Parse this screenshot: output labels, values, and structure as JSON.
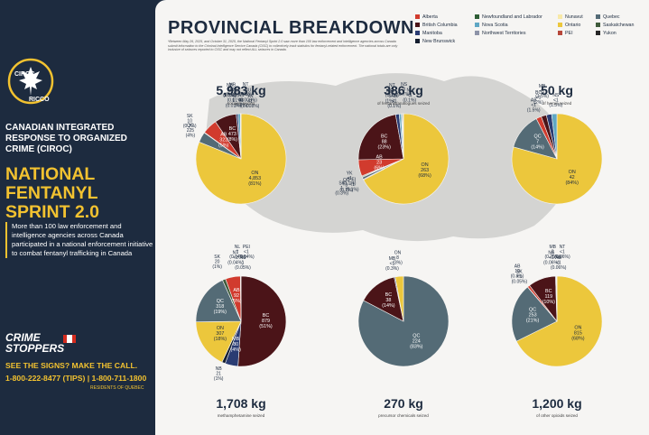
{
  "left": {
    "logo_top": "CIROC",
    "logo_bottom": "RICCO",
    "org": "CANADIAN INTEGRATED RESPONSE TO ORGANIZED CRIME (CIROC)",
    "headline": "NATIONAL FENTANYL SPRINT 2.0",
    "intro": "More than 100 law enforcement and intelligence agencies across Canada participated in a national enforcement initiative to combat fentanyl trafficking in Canada",
    "cs_line1": "CRIME",
    "cs_line2": "STOPPERS",
    "tagline": "SEE THE SIGNS? MAKE THE CALL.",
    "phones": "1-800-222-8477 (TIPS) | 1-800-711-1800",
    "quebec": "RESIDENTS OF QUEBEC"
  },
  "main": {
    "title": "PROVINCIAL BREAKDOWN",
    "footnote": "*Between May 26, 2025, and October 31, 2025, the National Fentanyl Sprint 2.0 saw more than 100 law enforcement and intelligence agencies across Canada submit information to the Criminal Intelligence Service Canada (CISC) to collectively track statistics for fentanyl-related enforcement. The national totals are only inclusive of seizures reported to CISC and may not reflect ALL seizures in Canada."
  },
  "colors": {
    "Alberta": "#d13b2e",
    "British Columbia": "#4b1418",
    "Manitoba": "#2a3c73",
    "New Brunswick": "#141e2f",
    "Newfoundland and Labrador": "#2e5d35",
    "Nova Scotia": "#5fa7c4",
    "Northwest Territories": "#8d93a8",
    "Nunavut": "#f8e9a7",
    "Ontario": "#ecc73c",
    "PEI": "#b7473a",
    "Quebec": "#546b76",
    "Saskatchewan": "#3f5b3b",
    "Yukon": "#262626",
    "page_bg": "#f6f5f3",
    "panel_bg": "#1d2b3f",
    "accent": "#f2c230"
  },
  "legend": [
    {
      "label": "Alberta",
      "color_key": "Alberta"
    },
    {
      "label": "British Columbia",
      "color_key": "British Columbia"
    },
    {
      "label": "Manitoba",
      "color_key": "Manitoba"
    },
    {
      "label": "New Brunswick",
      "color_key": "New Brunswick"
    },
    {
      "label": "Newfoundland and Labrador",
      "color_key": "Newfoundland and Labrador"
    },
    {
      "label": "Nova Scotia",
      "color_key": "Nova Scotia"
    },
    {
      "label": "Northwest Territories",
      "color_key": "Northwest Territories"
    },
    {
      "label": "Nunavut",
      "color_key": "Nunavut"
    },
    {
      "label": "Ontario",
      "color_key": "Ontario"
    },
    {
      "label": "PEI",
      "color_key": "PEI"
    },
    {
      "label": "Quebec",
      "color_key": "Quebec"
    },
    {
      "label": "Saskatchewan",
      "color_key": "Saskatchewan"
    },
    {
      "label": "Yukon",
      "color_key": "Yukon"
    }
  ],
  "chart_data": [
    {
      "type": "pie",
      "title": "5,983 kg",
      "subtitle": "cocaine seized",
      "slices": [
        {
          "code": "ON",
          "value": 4853,
          "pct": "81%",
          "color_key": "Ontario",
          "label": "ON\n4,853\n(81%)",
          "inside": true
        },
        {
          "code": "QC",
          "value": 225,
          "pct": "4%",
          "color_key": "Quebec",
          "label": "QC\n225\n(4%)"
        },
        {
          "code": "SK",
          "value": 10,
          "pct": "0.2%",
          "color_key": "Saskatchewan",
          "label": "SK\n10\n(0.2%)"
        },
        {
          "code": "AB",
          "value": 322,
          "pct": "5%",
          "color_key": "Alberta",
          "label": "AB\n322\n(5%)",
          "inside": true
        },
        {
          "code": "BC",
          "value": 473,
          "pct": "8%",
          "color_key": "British Columbia",
          "label": "BC\n473\n(8%)",
          "inside": true
        },
        {
          "code": "MB",
          "value": 40,
          "pct": "0.6%",
          "color_key": "Manitoba",
          "label": "MB\n40\n(0.6%)"
        },
        {
          "code": "NS",
          "value": 48,
          "pct": "0.8%",
          "color_key": "Nova Scotia",
          "label": "NS\n48\n(0.8%)"
        },
        {
          "code": "PEI",
          "value": 1,
          "pct": "0.01%",
          "color_key": "PEI",
          "label": "PEI\n1\n(0.01%)"
        },
        {
          "code": "NT",
          "value": 2,
          "pct": "0.03%",
          "color_key": "Northwest Territories",
          "label": "NT\n2\n(0.03%)"
        },
        {
          "code": "NL",
          "value": 1,
          "pct": "0.01%",
          "color_key": "Newfoundland and Labrador",
          "label": "NL\n1\n(0.01%)"
        },
        {
          "code": "NU",
          "value": 1,
          "pct": "0.008%",
          "color_key": "Nunavut",
          "label": "NU\n<1\n(0.008%)"
        },
        {
          "code": "NB",
          "value": 8,
          "pct": "0.1%",
          "color_key": "New Brunswick",
          "label": "NB\n8\n(0.1%)"
        },
        {
          "code": "YK",
          "value": 1,
          "pct": "0.008%",
          "color_key": "Yukon",
          "label": "YK\n<1\n(0.008%)"
        }
      ]
    },
    {
      "type": "pie",
      "title": "386 kg",
      "subtitle": "of fentanyl/analogues seized",
      "slices": [
        {
          "code": "ON",
          "value": 263,
          "pct": "68%",
          "color_key": "Ontario",
          "label": "ON\n263\n(68%)",
          "inside": true
        },
        {
          "code": "PEI",
          "value": 1,
          "pct": "0.1%",
          "color_key": "PEI",
          "label": "PEI\n<1\n(0.1%)"
        },
        {
          "code": "QC",
          "value": 3,
          "pct": "0.7%",
          "color_key": "Quebec",
          "label": "QC\n3\n(0.7%)"
        },
        {
          "code": "SK",
          "value": 1,
          "pct": "0.3%",
          "color_key": "Saskatchewan",
          "label": "SK\n1\n(0.3%)"
        },
        {
          "code": "YK",
          "value": 1,
          "pct": "0.1%",
          "color_key": "Yukon",
          "label": "YK\n<1\n(0.1%)"
        },
        {
          "code": "AB",
          "value": 23,
          "pct": "6%",
          "color_key": "Alberta",
          "label": "AB\n23\n(6%)",
          "inside": true
        },
        {
          "code": "BC",
          "value": 88,
          "pct": "23%",
          "color_key": "British Columbia",
          "label": "BC\n88\n(23%)",
          "inside": true
        },
        {
          "code": "MB",
          "value": 5,
          "pct": "1%",
          "color_key": "Manitoba",
          "label": "MB\n5\n(1%)"
        },
        {
          "code": "NS",
          "value": 3,
          "pct": "0.7%",
          "color_key": "Nova Scotia",
          "label": "NS\n3\n(0.7%)"
        },
        {
          "code": "NB",
          "value": 1,
          "pct": "0.1%",
          "color_key": "New Brunswick",
          "label": "NB\n<1\n(0.1%)"
        },
        {
          "code": "NL",
          "value": 1,
          "pct": "0.1%",
          "color_key": "Newfoundland and Labrador",
          "label": "NL\n<1\n(0.1%)"
        },
        {
          "code": "NT",
          "value": 1,
          "pct": "0.1%",
          "color_key": "Northwest Territories",
          "label": "NT\n<1\n(0.1%)"
        }
      ]
    },
    {
      "type": "pie",
      "title": "50 kg",
      "subtitle": "of heroin seized",
      "slices": [
        {
          "code": "ON",
          "value": 42,
          "pct": "84%",
          "color_key": "Ontario",
          "label": "ON\n42\n(84%)",
          "inside": true
        },
        {
          "code": "QC",
          "value": 7,
          "pct": "14%",
          "color_key": "Quebec",
          "label": "QC\n7\n(14%)",
          "inside": true
        },
        {
          "code": "AB",
          "value": 1,
          "pct": "1.5%",
          "color_key": "Alberta",
          "label": "AB\n<1\n(1.5%)"
        },
        {
          "code": "BC",
          "value": 1,
          "pct": "2%",
          "color_key": "British Columbia",
          "label": "BC\n<1\n(2%)"
        },
        {
          "code": "MB",
          "value": 1,
          "pct": "1.5%",
          "color_key": "Manitoba",
          "label": "MB\n<1\n(1.5%)"
        },
        {
          "code": "NS",
          "value": 1,
          "pct": "1.5%",
          "color_key": "Nova Scotia",
          "label": "NS\n<1\n(1.5%)"
        }
      ]
    },
    {
      "type": "pie",
      "title": "1,708 kg",
      "subtitle": "methamphetamine seized",
      "slices": [
        {
          "code": "BC",
          "value": 879,
          "pct": "51%",
          "color_key": "British Columbia",
          "label": "BC\n879\n(51%)",
          "inside": true
        },
        {
          "code": "MB",
          "value": 80,
          "pct": "4%",
          "color_key": "Manitoba",
          "label": "MB\n80\n(4%)",
          "inside": true
        },
        {
          "code": "NB",
          "value": 21,
          "pct": "1%",
          "color_key": "New Brunswick",
          "label": "NB\n21\n(1%)"
        },
        {
          "code": "ON",
          "value": 307,
          "pct": "18%",
          "color_key": "Ontario",
          "label": "ON\n307\n(18%)",
          "inside": true
        },
        {
          "code": "QC",
          "value": 318,
          "pct": "19%",
          "color_key": "Quebec",
          "label": "QC\n318\n(19%)",
          "inside": true
        },
        {
          "code": "SK",
          "value": 20,
          "pct": "1%",
          "color_key": "Saskatchewan",
          "label": "SK\n20\n(1%)"
        },
        {
          "code": "AB",
          "value": 92,
          "pct": "5%",
          "color_key": "Alberta",
          "label": "AB\n92\n(5%)",
          "inside": true
        },
        {
          "code": "NL",
          "value": 1,
          "pct": "0.04%",
          "color_key": "Newfoundland and Labrador",
          "label": "NL\n1\n(0.04%)"
        },
        {
          "code": "NS",
          "value": 1,
          "pct": "0.05%",
          "color_key": "Nova Scotia",
          "label": "NS\n1\n(0.05%)"
        },
        {
          "code": "NT",
          "value": 1,
          "pct": "0.04%",
          "color_key": "Northwest Territories",
          "label": "NT\n<1\n(0.04%)"
        },
        {
          "code": "PEI",
          "value": 1,
          "pct": "0.04%",
          "color_key": "PEI",
          "label": "PEI\n<1\n(0.04%)"
        }
      ]
    },
    {
      "type": "pie",
      "title": "270 kg",
      "subtitle": "precursor chemicals seized",
      "slices": [
        {
          "code": "QC",
          "value": 224,
          "pct": "83%",
          "color_key": "Quebec",
          "label": "QC\n224\n(83%)",
          "inside": true
        },
        {
          "code": "BC",
          "value": 38,
          "pct": "14%",
          "color_key": "British Columbia",
          "label": "BC\n38\n(14%)",
          "inside": true
        },
        {
          "code": "MB",
          "value": 1,
          "pct": "0.3%",
          "color_key": "Manitoba",
          "label": "MB\n<1\n(0.3%)"
        },
        {
          "code": "ON",
          "value": 8,
          "pct": "3%",
          "color_key": "Ontario",
          "label": "ON\n8\n(3%)"
        }
      ]
    },
    {
      "type": "pie",
      "title": "1,200 kg",
      "subtitle": "of other opioids seized",
      "slices": [
        {
          "code": "ON",
          "value": 815,
          "pct": "68%",
          "color_key": "Ontario",
          "label": "ON\n815\n(68%)",
          "inside": true
        },
        {
          "code": "QC",
          "value": 253,
          "pct": "21%",
          "color_key": "Quebec",
          "label": "QC\n253\n(21%)",
          "inside": true
        },
        {
          "code": "SK",
          "value": 1,
          "pct": "0.05%",
          "color_key": "Saskatchewan",
          "label": "SK\n<1\n(0.05%)"
        },
        {
          "code": "AB",
          "value": 10,
          "pct": "0.8%",
          "color_key": "Alberta",
          "label": "AB\n10\n(0.8%)"
        },
        {
          "code": "BC",
          "value": 119,
          "pct": "10%",
          "color_key": "British Columbia",
          "label": "BC\n119\n(10%)",
          "inside": true
        },
        {
          "code": "MB",
          "value": 3,
          "pct": "0.25%",
          "color_key": "Manitoba",
          "label": "MB\n3\n(0.25%)"
        },
        {
          "code": "NB",
          "value": 1,
          "pct": "0.06%",
          "color_key": "New Brunswick",
          "label": "NB\n<1\n(0.06%)"
        },
        {
          "code": "NS",
          "value": 1,
          "pct": "0.06%",
          "color_key": "Nova Scotia",
          "label": "NS\n<1\n(0.06%)"
        },
        {
          "code": "NT",
          "value": 1,
          "pct": "0.06%",
          "color_key": "Northwest Territories",
          "label": "NT\n<1\n(0.06%)"
        }
      ]
    }
  ]
}
